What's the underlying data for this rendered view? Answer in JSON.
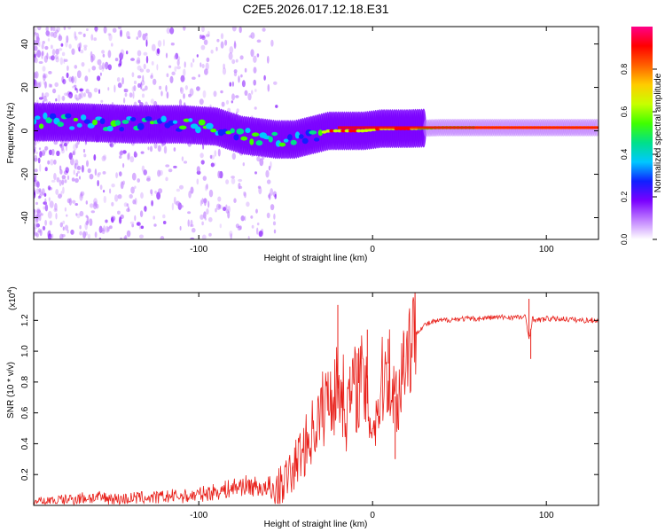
{
  "title": "C2E5.2026.017.12.18.E31",
  "chart_data": [
    {
      "type": "heatmap",
      "xlabel": "Height of straight line (km)",
      "ylabel": "Frequency (Hz)",
      "xlim": [
        -195,
        130
      ],
      "ylim": [
        -50,
        48
      ],
      "xticks": [
        -100,
        0,
        100
      ],
      "xtick_labels": [
        "-100",
        "0",
        "100"
      ],
      "yticks": [
        40,
        20,
        0,
        -20,
        -40
      ],
      "ytick_labels": [
        "40",
        "20",
        "0",
        "-20",
        "-40"
      ],
      "ridge_x": [
        -195,
        -170,
        -140,
        -110,
        -90,
        -75,
        -65,
        -55,
        -45,
        -35,
        -25,
        -15,
        -5,
        5,
        20,
        40,
        60,
        80,
        100,
        130
      ],
      "ridge_y": [
        4,
        4,
        3,
        3,
        2,
        -2,
        -3,
        -4,
        -4,
        -2,
        0,
        0,
        0,
        1,
        1,
        1.5,
        1.5,
        1.5,
        1.5,
        1.5
      ],
      "colorbar": {
        "label": "Normalized spectral amplitude",
        "ticks": [
          0.0,
          0.2,
          0.4,
          0.6,
          0.8
        ],
        "tick_labels": [
          "0.0",
          "0.2",
          "0.4",
          "0.6",
          "0.8"
        ],
        "range": [
          0,
          1
        ],
        "colors": [
          "#ffffff",
          "#c080ff",
          "#7a00ff",
          "#1020ff",
          "#00c8ff",
          "#00e08a",
          "#40ff00",
          "#c8ff00",
          "#ffcc00",
          "#ff6000",
          "#ff0000",
          "#ff0088"
        ]
      }
    },
    {
      "type": "line",
      "xlabel": "Height of straight line (km)",
      "ylabel": "SNR (10 * v/v)",
      "yscale_label": "(x10",
      "yscale_exp": "4",
      "yscale_close": ")",
      "xlim": [
        -195,
        130
      ],
      "ylim": [
        0,
        1.38
      ],
      "xticks": [
        -100,
        0,
        100
      ],
      "xtick_labels": [
        "-100",
        "0",
        "100"
      ],
      "yticks": [
        0.2,
        0.4,
        0.6,
        0.8,
        1.0,
        1.2
      ],
      "ytick_labels": [
        "0.2",
        "0.4",
        "0.6",
        "0.8",
        "1.0",
        "1.2"
      ],
      "color": "#e8201a",
      "series": [
        {
          "name": "SNR",
          "x": [
            -195,
            -185,
            -175,
            -165,
            -155,
            -145,
            -135,
            -125,
            -115,
            -105,
            -95,
            -85,
            -75,
            -65,
            -58,
            -52,
            -46,
            -42,
            -38,
            -34,
            -30,
            -27,
            -24,
            -21,
            -18,
            -15,
            -12,
            -9,
            -6,
            -3,
            0,
            3,
            6,
            9,
            12,
            15,
            18,
            21,
            25,
            30,
            35,
            40,
            50,
            60,
            70,
            80,
            88,
            90,
            92,
            95,
            100,
            110,
            120,
            130
          ],
          "y": [
            0.02,
            0.03,
            0.04,
            0.05,
            0.05,
            0.04,
            0.05,
            0.05,
            0.06,
            0.06,
            0.08,
            0.1,
            0.13,
            0.12,
            0.08,
            0.14,
            0.22,
            0.33,
            0.4,
            0.5,
            0.58,
            0.68,
            0.72,
            0.75,
            0.77,
            0.6,
            0.72,
            0.78,
            0.82,
            0.66,
            0.52,
            0.62,
            0.82,
            0.92,
            0.7,
            0.72,
            0.96,
            1.05,
            1.12,
            1.17,
            1.19,
            1.2,
            1.21,
            1.21,
            1.22,
            1.22,
            1.22,
            1.08,
            1.21,
            1.2,
            1.21,
            1.21,
            1.2,
            1.2
          ]
        }
      ],
      "spikes": [
        {
          "x": -20,
          "y": 1.3
        },
        {
          "x": -13,
          "y": 0.9
        },
        {
          "x": -8,
          "y": 1.02
        },
        {
          "x": -3,
          "y": 1.14
        },
        {
          "x": 9,
          "y": 1.08
        },
        {
          "x": 13,
          "y": 0.3
        },
        {
          "x": 18,
          "y": 1.12
        },
        {
          "x": 90,
          "y": 1.34
        },
        {
          "x": 91,
          "y": 0.95
        }
      ]
    }
  ]
}
